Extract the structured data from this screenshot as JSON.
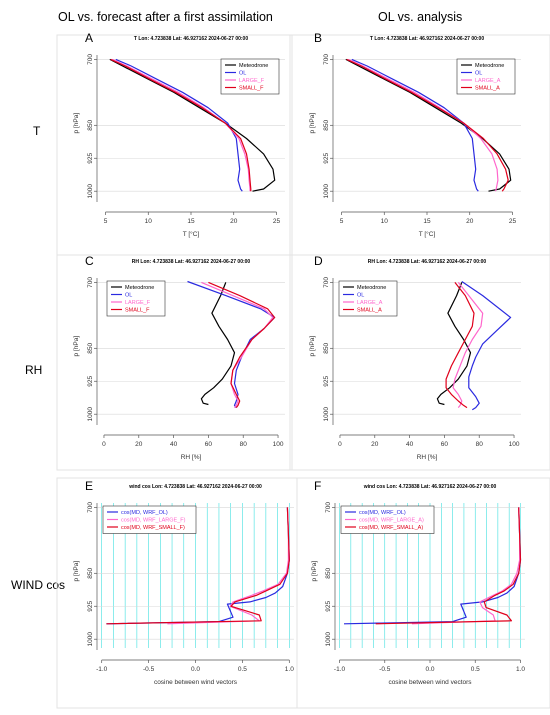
{
  "column_headers": [
    "OL vs. forecast after a first assimilation",
    "OL vs. analysis"
  ],
  "row_labels": [
    "T",
    "RH",
    "WIND cos"
  ],
  "colors": {
    "Meteodrone": "#000000",
    "OL": "#2a2ae0",
    "LARGE": "#ff66cc",
    "SMALL": "#e0001b",
    "wind_grid": "#40e0e0"
  },
  "chart_data": [
    {
      "type": "line",
      "panel_letter": "A",
      "title": "T Lon: 4.723838 Lat: 46.927162 2024-06-27 00:00",
      "xlabel": "T [°C]",
      "ylabel": "p [hPa]",
      "xlim": [
        4,
        26
      ],
      "ylim": [
        1020,
        690
      ],
      "xticks": [
        5,
        10,
        15,
        20,
        25
      ],
      "yticks": [
        700,
        850,
        925,
        1000
      ],
      "legend": {
        "placement": "top-right",
        "entries": [
          "Meteodrone",
          "OL",
          "LARGE_F",
          "SMALL_F"
        ]
      },
      "series": [
        {
          "name": "Meteodrone",
          "color": "#000000",
          "x": [
            5.5,
            7,
            10,
            13,
            16,
            19,
            21.5,
            23.5,
            24.6,
            24.8,
            23.5,
            22.2
          ],
          "y": [
            700,
            715,
            745,
            775,
            810,
            845,
            880,
            915,
            950,
            975,
            995,
            1000
          ]
        },
        {
          "name": "OL",
          "color": "#2a2ae0",
          "x": [
            6.2,
            8,
            11,
            14,
            17,
            19.3,
            20.3,
            20.5,
            20.7,
            20.5,
            20.8,
            21
          ],
          "y": [
            700,
            715,
            745,
            775,
            810,
            845,
            880,
            915,
            950,
            975,
            995,
            1000
          ]
        },
        {
          "name": "LARGE_F",
          "color": "#ff66cc",
          "x": [
            5.8,
            7.5,
            10.5,
            13.5,
            16.5,
            19,
            20.6,
            21.3,
            21.7,
            21.8,
            21.9,
            21.9
          ],
          "y": [
            700,
            715,
            745,
            775,
            810,
            845,
            880,
            915,
            950,
            975,
            995,
            1000
          ]
        },
        {
          "name": "SMALL_F",
          "color": "#e0001b",
          "x": [
            5.6,
            7.3,
            10.2,
            13.2,
            16.3,
            19,
            20.8,
            21.5,
            21.8,
            21.9,
            22,
            22
          ],
          "y": [
            700,
            715,
            745,
            775,
            810,
            845,
            880,
            915,
            950,
            975,
            995,
            1000
          ]
        }
      ]
    },
    {
      "type": "line",
      "panel_letter": "B",
      "title": "T Lon: 4.723838 Lat: 46.927162 2024-06-27 00:00",
      "xlabel": "T [°C]",
      "ylabel": "p [hPa]",
      "xlim": [
        4,
        26
      ],
      "ylim": [
        1020,
        690
      ],
      "xticks": [
        5,
        10,
        15,
        20,
        25
      ],
      "yticks": [
        700,
        850,
        925,
        1000
      ],
      "legend": {
        "placement": "top-right",
        "entries": [
          "Meteodrone",
          "OL",
          "LARGE_A",
          "SMALL_A"
        ]
      },
      "series": [
        {
          "name": "Meteodrone",
          "color": "#000000",
          "x": [
            5.5,
            7,
            10,
            13,
            16,
            19,
            21.5,
            23.5,
            24.6,
            24.8,
            23.5,
            22.2
          ],
          "y": [
            700,
            715,
            745,
            775,
            810,
            845,
            880,
            915,
            950,
            975,
            995,
            1000
          ]
        },
        {
          "name": "OL",
          "color": "#2a2ae0",
          "x": [
            6.2,
            8,
            11,
            14,
            17,
            19.3,
            20.3,
            20.5,
            20.7,
            20.5,
            20.8,
            21
          ],
          "y": [
            700,
            715,
            745,
            775,
            810,
            845,
            880,
            915,
            950,
            975,
            995,
            1000
          ]
        },
        {
          "name": "LARGE_A",
          "color": "#ff66cc",
          "x": [
            5.8,
            7.5,
            10.5,
            13.5,
            16.5,
            19.3,
            21.3,
            22.6,
            23.2,
            23.3,
            23.1,
            23
          ],
          "y": [
            700,
            715,
            745,
            775,
            810,
            845,
            880,
            915,
            950,
            975,
            995,
            1000
          ]
        },
        {
          "name": "SMALL_A",
          "color": "#e0001b",
          "x": [
            5.6,
            7.3,
            10.2,
            13.2,
            16.3,
            19.3,
            21.6,
            23.2,
            24.2,
            24.5,
            24,
            23.8
          ],
          "y": [
            700,
            715,
            745,
            775,
            810,
            845,
            880,
            915,
            950,
            975,
            995,
            1000
          ]
        }
      ]
    },
    {
      "type": "line",
      "panel_letter": "C",
      "title": "RH Lon: 4.723838 Lat: 46.927162 2024-06-27 00:00",
      "xlabel": "RH [%]",
      "ylabel": "p [hPa]",
      "xlim": [
        -4,
        104
      ],
      "ylim": [
        1020,
        690
      ],
      "xticks": [
        0,
        20,
        40,
        60,
        80,
        100
      ],
      "yticks": [
        700,
        850,
        925,
        1000
      ],
      "legend": {
        "placement": "top-left",
        "entries": [
          "Meteodrone",
          "OL",
          "LARGE_F",
          "SMALL_F"
        ]
      },
      "series": [
        {
          "name": "Meteodrone",
          "color": "#000000",
          "x": [
            70,
            67,
            62,
            66,
            71,
            75,
            73,
            68,
            63,
            58,
            56,
            57,
            60
          ],
          "y": [
            700,
            730,
            770,
            800,
            830,
            860,
            890,
            920,
            940,
            955,
            965,
            975,
            978
          ]
        },
        {
          "name": "OL",
          "color": "#2a2ae0",
          "x": [
            48,
            70,
            90,
            98,
            92,
            84,
            79,
            76,
            75,
            77,
            76,
            75,
            76
          ],
          "y": [
            698,
            730,
            760,
            780,
            805,
            830,
            870,
            900,
            930,
            955,
            970,
            980,
            985
          ]
        },
        {
          "name": "LARGE_F",
          "color": "#ff66cc",
          "x": [
            56,
            74,
            92,
            97,
            92,
            85,
            79,
            74,
            73,
            75,
            77,
            76,
            75
          ],
          "y": [
            700,
            730,
            760,
            780,
            805,
            830,
            870,
            900,
            930,
            955,
            970,
            980,
            985
          ]
        },
        {
          "name": "SMALL_F",
          "color": "#e0001b",
          "x": [
            60,
            78,
            94,
            98,
            92,
            85,
            78,
            74,
            73,
            76,
            78,
            77,
            76
          ],
          "y": [
            700,
            730,
            760,
            780,
            805,
            830,
            870,
            900,
            930,
            955,
            970,
            980,
            985
          ]
        }
      ]
    },
    {
      "type": "line",
      "panel_letter": "D",
      "title": "RH Lon: 4.723838 Lat: 46.927162 2024-06-27 00:00",
      "xlabel": "RH [%]",
      "ylabel": "p [hPa]",
      "xlim": [
        -4,
        104
      ],
      "ylim": [
        1020,
        690
      ],
      "xticks": [
        0,
        20,
        40,
        60,
        80,
        100
      ],
      "yticks": [
        700,
        850,
        925,
        1000
      ],
      "legend": {
        "placement": "top-left",
        "entries": [
          "Meteodrone",
          "OL",
          "LARGE_A",
          "SMALL_A"
        ]
      },
      "series": [
        {
          "name": "Meteodrone",
          "color": "#000000",
          "x": [
            70,
            67,
            62,
            66,
            71,
            75,
            73,
            68,
            63,
            58,
            56,
            57,
            60
          ],
          "y": [
            700,
            730,
            770,
            800,
            830,
            860,
            890,
            920,
            940,
            955,
            965,
            975,
            978
          ]
        },
        {
          "name": "OL",
          "color": "#2a2ae0",
          "x": [
            70,
            82,
            98,
            90,
            82,
            78,
            76,
            74,
            74,
            78,
            80,
            78,
            76
          ],
          "y": [
            698,
            730,
            780,
            810,
            840,
            870,
            890,
            915,
            940,
            960,
            975,
            985,
            990
          ]
        },
        {
          "name": "LARGE_A",
          "color": "#ff66cc",
          "x": [
            68,
            74,
            82,
            81,
            76,
            72,
            69,
            66,
            65,
            68,
            70,
            69,
            68
          ],
          "y": [
            700,
            730,
            770,
            800,
            830,
            860,
            890,
            920,
            940,
            955,
            970,
            980,
            985
          ]
        },
        {
          "name": "SMALL_A",
          "color": "#e0001b",
          "x": [
            66,
            72,
            77,
            76,
            72,
            68,
            64,
            61,
            61,
            64,
            68,
            71,
            73
          ],
          "y": [
            700,
            730,
            770,
            800,
            830,
            860,
            890,
            920,
            940,
            955,
            970,
            980,
            985
          ]
        }
      ]
    },
    {
      "type": "line",
      "panel_letter": "E",
      "title": "wind cos Lon: 4.723838 Lat: 46.927162 2024-06-27 00:00",
      "xlabel": "cosine between wind vectors",
      "ylabel": "p [hPa]",
      "xlim": [
        -1.05,
        1.05
      ],
      "ylim": [
        1020,
        690
      ],
      "xticks": [
        -1.0,
        -0.5,
        0.0,
        0.5,
        1.0
      ],
      "yticks": [
        700,
        850,
        925,
        1000
      ],
      "legend": {
        "placement": "top-left",
        "entries": [
          "cos(MD, WRF_OL)",
          "cos(MD, WRF_LARGE_F)",
          "cos(MD, WRF_SMALL_F)"
        ]
      },
      "series": [
        {
          "name": "cos(MD, WRF_OL)",
          "color": "#2a2ae0",
          "x": [
            0.98,
            0.99,
            1.0,
            0.98,
            0.93,
            0.85,
            0.75,
            0.58,
            0.34,
            0.4,
            0.25,
            -0.95
          ],
          "y": [
            700,
            760,
            820,
            850,
            880,
            895,
            905,
            915,
            920,
            950,
            960,
            965
          ]
        },
        {
          "name": "cos(MD, WRF_LARGE_F)",
          "color": "#ff66cc",
          "x": [
            0.98,
            0.99,
            0.99,
            0.97,
            0.88,
            0.72,
            0.6,
            0.4,
            0.37,
            0.6,
            0.68,
            -0.3
          ],
          "y": [
            700,
            760,
            820,
            850,
            875,
            890,
            900,
            915,
            925,
            945,
            958,
            965
          ]
        },
        {
          "name": "cos(MD, WRF_SMALL_F)",
          "color": "#e0001b",
          "x": [
            0.98,
            0.99,
            1.0,
            0.98,
            0.9,
            0.75,
            0.65,
            0.42,
            0.38,
            0.68,
            0.7,
            -0.95
          ],
          "y": [
            700,
            760,
            820,
            850,
            875,
            890,
            900,
            915,
            925,
            945,
            958,
            965
          ]
        }
      ]
    },
    {
      "type": "line",
      "panel_letter": "F",
      "title": "wind cos Lon: 4.723838 Lat: 46.927162 2024-06-27 00:00",
      "xlabel": "cosine between wind vectors",
      "ylabel": "p [hPa]",
      "xlim": [
        -1.05,
        1.05
      ],
      "ylim": [
        1020,
        690
      ],
      "xticks": [
        -1.0,
        -0.5,
        0.0,
        0.5,
        1.0
      ],
      "yticks": [
        700,
        850,
        925,
        1000
      ],
      "legend": {
        "placement": "top-left",
        "entries": [
          "cos(MD, WRF_OL)",
          "cos(MD, WRF_LARGE_A)",
          "cos(MD, WRF_SMALL_A)"
        ]
      },
      "series": [
        {
          "name": "cos(MD, WRF_OL)",
          "color": "#2a2ae0",
          "x": [
            0.98,
            0.99,
            1.0,
            0.98,
            0.93,
            0.85,
            0.75,
            0.58,
            0.34,
            0.4,
            0.25,
            -0.95
          ],
          "y": [
            700,
            760,
            820,
            850,
            880,
            895,
            905,
            915,
            920,
            950,
            960,
            965
          ]
        },
        {
          "name": "cos(MD, WRF_LARGE_A)",
          "color": "#ff66cc",
          "x": [
            0.98,
            0.99,
            0.99,
            0.96,
            0.9,
            0.8,
            0.7,
            0.55,
            0.58,
            0.7,
            0.72,
            -0.2
          ],
          "y": [
            700,
            760,
            820,
            850,
            875,
            890,
            900,
            915,
            928,
            945,
            958,
            965
          ]
        },
        {
          "name": "cos(MD, WRF_SMALL_A)",
          "color": "#e0001b",
          "x": [
            0.98,
            0.99,
            1.0,
            0.98,
            0.92,
            0.82,
            0.72,
            0.6,
            0.62,
            0.85,
            0.9,
            -0.6
          ],
          "y": [
            700,
            760,
            820,
            850,
            875,
            890,
            900,
            915,
            928,
            945,
            958,
            965
          ]
        }
      ]
    }
  ]
}
